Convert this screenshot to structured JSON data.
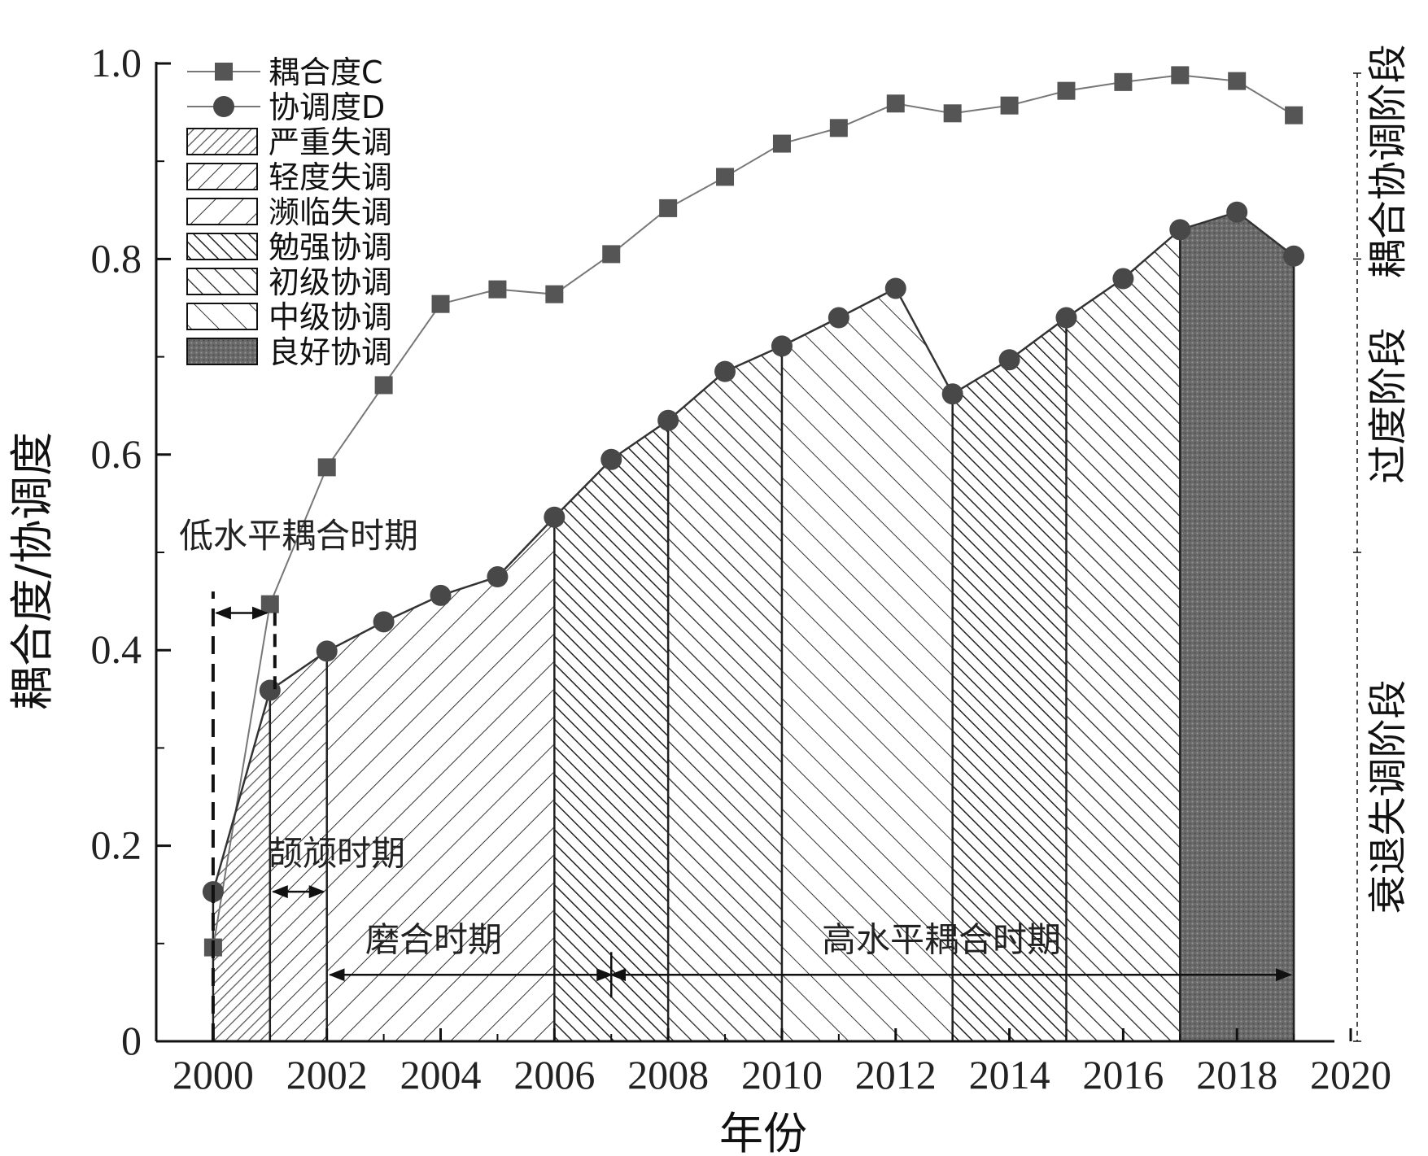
{
  "chart_data": {
    "type": "line",
    "xlabel": "年份",
    "ylabel": "耦合度/协调度",
    "xlim": [
      1999,
      2020
    ],
    "ylim": [
      0,
      1.0
    ],
    "x_ticks": [
      2000,
      2002,
      2004,
      2006,
      2008,
      2010,
      2012,
      2014,
      2016,
      2018,
      2020
    ],
    "y_ticks": [
      0,
      0.2,
      0.4,
      0.6,
      0.8,
      1.0
    ],
    "y_tick_labels": [
      "0",
      "0.2",
      "0.4",
      "0.6",
      "0.8",
      "1.0"
    ],
    "grid": false,
    "legend_position": "top-left",
    "x": [
      2000,
      2001,
      2002,
      2003,
      2004,
      2005,
      2006,
      2007,
      2008,
      2009,
      2010,
      2011,
      2012,
      2013,
      2014,
      2015,
      2016,
      2017,
      2018,
      2019
    ],
    "series": [
      {
        "name": "耦合度C",
        "marker": "square",
        "values": [
          0.096,
          0.447,
          0.587,
          0.671,
          0.754,
          0.769,
          0.764,
          0.805,
          0.852,
          0.884,
          0.918,
          0.934,
          0.959,
          0.949,
          0.957,
          0.972,
          0.981,
          0.988,
          0.982,
          0.947
        ]
      },
      {
        "name": "协调度D",
        "marker": "circle",
        "values": [
          0.153,
          0.359,
          0.399,
          0.429,
          0.456,
          0.475,
          0.536,
          0.595,
          0.635,
          0.685,
          0.711,
          0.74,
          0.77,
          0.662,
          0.697,
          0.74,
          0.78,
          0.83,
          0.848,
          0.803
        ]
      }
    ],
    "regions": [
      {
        "name": "严重失调",
        "from": 2000,
        "to": 2001,
        "pattern": "hatch-up-dense"
      },
      {
        "name": "轻度失调",
        "from": 2001,
        "to": 2002,
        "pattern": "hatch-up"
      },
      {
        "name": "濒临失调",
        "from": 2002,
        "to": 2006,
        "pattern": "hatch-up-wide"
      },
      {
        "name": "勉强协调",
        "from": 2006,
        "to": 2008,
        "pattern": "hatch-down-dense"
      },
      {
        "name": "初级协调",
        "from": 2008,
        "to": 2010,
        "pattern": "hatch-down"
      },
      {
        "name": "中级协调",
        "from": 2010,
        "to": 2013,
        "pattern": "hatch-down-wide"
      },
      {
        "name": "勉强协调",
        "from": 2013,
        "to": 2015,
        "pattern": "hatch-down-dense"
      },
      {
        "name": "初级协调",
        "from": 2015,
        "to": 2017,
        "pattern": "hatch-down"
      },
      {
        "name": "良好协调",
        "from": 2017,
        "to": 2019,
        "pattern": "dots-dark"
      }
    ],
    "legend": [
      "耦合度C",
      "协调度D",
      "严重失调",
      "轻度失调",
      "濒临失调",
      "勉强协调",
      "初级协调",
      "中级协调",
      "良好协调"
    ],
    "annotations": [
      {
        "text": "低水平耦合时期",
        "from": 2000,
        "to": 2001
      },
      {
        "text": "颉颃时期",
        "from": 2001,
        "to": 2002
      },
      {
        "text": "磨合时期",
        "from": 2002,
        "to": 2007
      },
      {
        "text": "高水平耦合时期",
        "from": 2007,
        "to": 2019
      }
    ],
    "side_axis": {
      "labels": [
        "衰退失调阶段",
        "过度阶段",
        "耦合协调阶段"
      ],
      "breaks": [
        0.5,
        0.8
      ]
    }
  }
}
